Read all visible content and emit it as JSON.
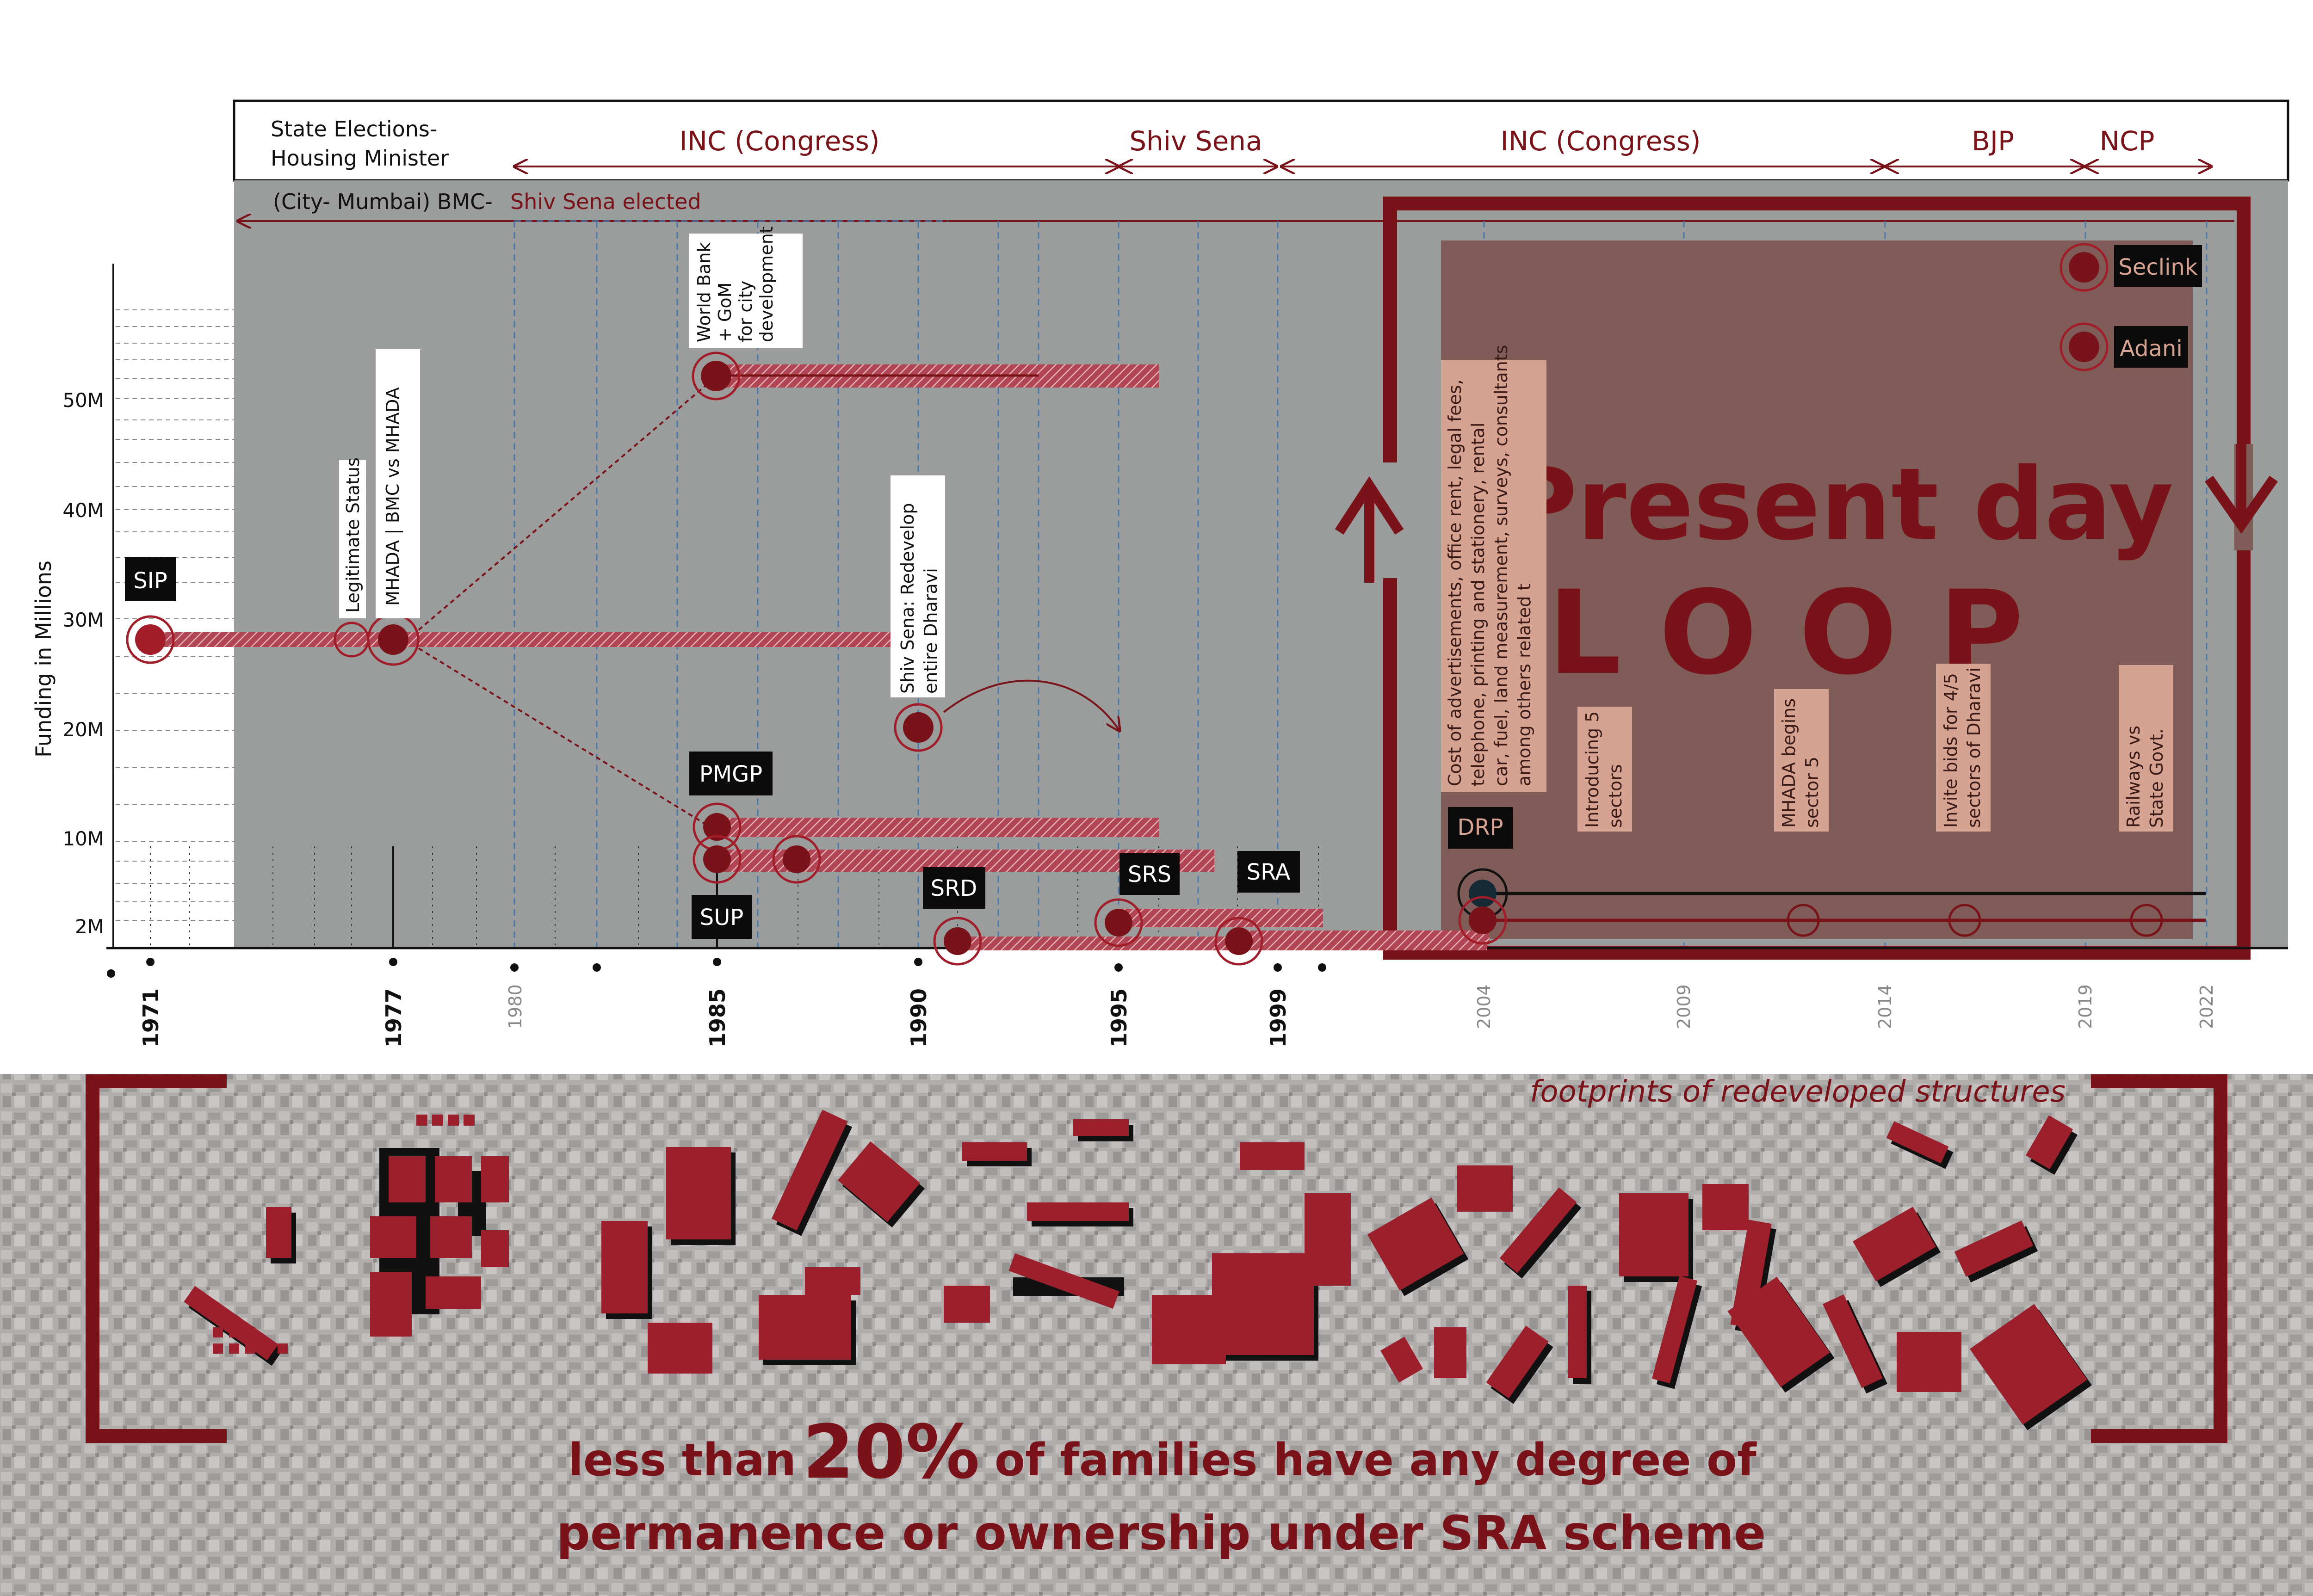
{
  "header": {
    "state_label": [
      "State Elections-",
      "Housing Minister"
    ],
    "city_label": "(City- Mumbai) BMC-",
    "city_party": "Shiv Sena elected",
    "parties": [
      "INC (Congress)",
      "Shiv Sena",
      "INC (Congress)",
      "BJP",
      "NCP"
    ]
  },
  "chart": {
    "ylabel": "Funding in Millions",
    "yticks": [
      "50M",
      "40M",
      "30M",
      "20M",
      "10M",
      "2M"
    ],
    "years": [
      "1971",
      "1977",
      "1985",
      "1990",
      "1995",
      "1999"
    ],
    "years_light": [
      "1980",
      "2004",
      "2009",
      "2014",
      "2019",
      "2022"
    ],
    "schemes": [
      "SIP",
      "PMGP",
      "SUP",
      "SRD",
      "SRS",
      "SRA",
      "DRP",
      "Seclink",
      "Adani"
    ]
  },
  "events": {
    "legit": "Legitimate Status",
    "mhada": "MHADA  | BMC vs MHADA",
    "world_bank": [
      "World Bank",
      "+ GoM",
      "for city",
      "development"
    ],
    "shiv_sena": [
      "Shiv Sena:  Redevelop",
      "entire Dharavi"
    ],
    "cost": [
      "Cost of advertisements, office rent, legal fees,",
      "telephone, printing and stationery, rental",
      "car, fuel, land measurement, surveys, consultants",
      "among others related t"
    ],
    "sectors": [
      "Introducing 5",
      "sectors"
    ],
    "mhada5": [
      "MHADA begins",
      "sector 5"
    ],
    "bids": [
      "Invite bids for 4/5",
      "sectors of Dharavi"
    ],
    "railways": [
      "Railways vs",
      "State Govt."
    ]
  },
  "loop": {
    "line1": "Present day",
    "line2": "LOOP"
  },
  "footer": {
    "caption": "footprints of redeveloped structures",
    "stat_before": "less than",
    "stat_value": "20%",
    "stat_after": "of families have any degree of",
    "stat_line2": "permanence or ownership under SRA scheme"
  },
  "colors": {
    "maroon": "#7a1319",
    "marker": "#a01d29",
    "panel": "#9b9c9c",
    "loop_fill": "#7f5c57",
    "label_bg": "#d6a392"
  }
}
